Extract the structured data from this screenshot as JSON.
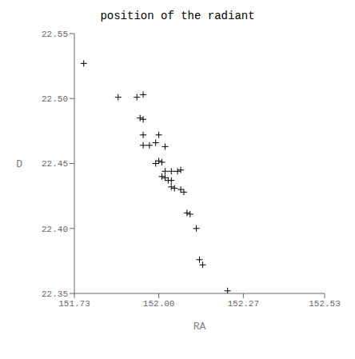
{
  "chart_data": {
    "type": "scatter",
    "title": "position of the radiant",
    "xlabel": "RA",
    "ylabel": "D",
    "xlim": [
      151.73,
      152.53
    ],
    "ylim": [
      22.35,
      22.55
    ],
    "xticks": [
      151.73,
      {
        "value": 152.0,
        "label": "152.00"
      },
      152.27,
      152.53
    ],
    "yticks": [
      22.35,
      {
        "value": 22.4,
        "label": "22.40"
      },
      22.45,
      {
        "value": 22.5,
        "label": "22.50"
      },
      22.55
    ],
    "color": "#000000",
    "marker": "plus",
    "x": [
      151.76,
      151.87,
      151.93,
      151.95,
      151.94,
      151.95,
      151.95,
      152.0,
      151.95,
      151.97,
      151.99,
      152.02,
      151.99,
      152.0,
      152.01,
      152.02,
      152.04,
      152.06,
      152.07,
      152.01,
      152.02,
      152.03,
      152.04,
      152.04,
      152.05,
      152.07,
      152.08,
      152.09,
      152.1,
      152.12,
      152.13,
      152.14,
      152.22
    ],
    "values": [
      22.527,
      22.501,
      22.501,
      22.503,
      22.485,
      22.484,
      22.472,
      22.472,
      22.464,
      22.464,
      22.466,
      22.463,
      22.45,
      22.452,
      22.451,
      22.444,
      22.444,
      22.444,
      22.445,
      22.44,
      22.439,
      22.437,
      22.437,
      22.432,
      22.431,
      22.43,
      22.428,
      22.412,
      22.411,
      22.4,
      22.376,
      22.372,
      22.352
    ]
  }
}
